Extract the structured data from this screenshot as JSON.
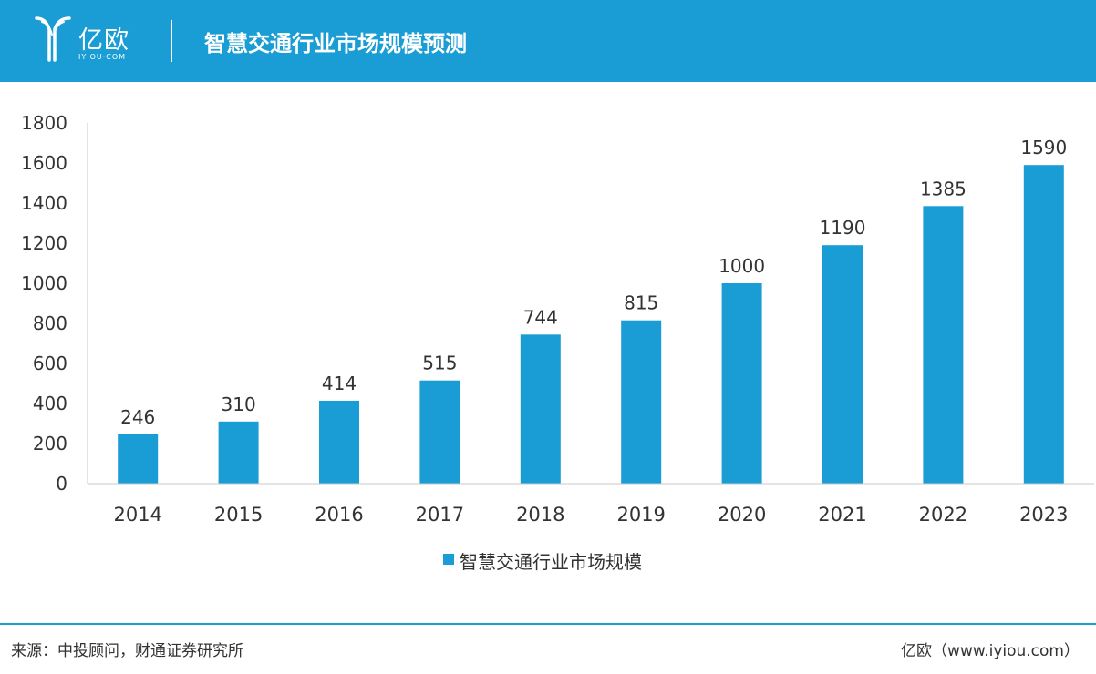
{
  "header": {
    "logo_text": "亿欧",
    "logo_sub": "IYIOU·COM",
    "title": "智慧交通行业市场规模预测"
  },
  "colors": {
    "brand": "#1a9dd4",
    "axis": "#c8c8c8",
    "text": "#333333"
  },
  "chart_data": {
    "type": "bar",
    "title": "智慧交通行业市场规模预测",
    "categories": [
      "2014",
      "2015",
      "2016",
      "2017",
      "2018",
      "2019",
      "2020",
      "2021",
      "2022",
      "2023"
    ],
    "series": [
      {
        "name": "智慧交通行业市场规模",
        "values": [
          246,
          310,
          414,
          515,
          744,
          815,
          1000,
          1190,
          1385,
          1590
        ]
      }
    ],
    "yticks": [
      "0",
      "200",
      "400",
      "600",
      "800",
      "1000",
      "1200",
      "1400",
      "1600",
      "1800"
    ],
    "ylim": [
      0,
      1800
    ],
    "xlabel": "",
    "ylabel": "",
    "grid": false,
    "legend_position": "bottom-center"
  },
  "footer": {
    "source": "来源：中投顾问，财通证券研究所",
    "site": "亿欧（www.iyiou.com）"
  }
}
